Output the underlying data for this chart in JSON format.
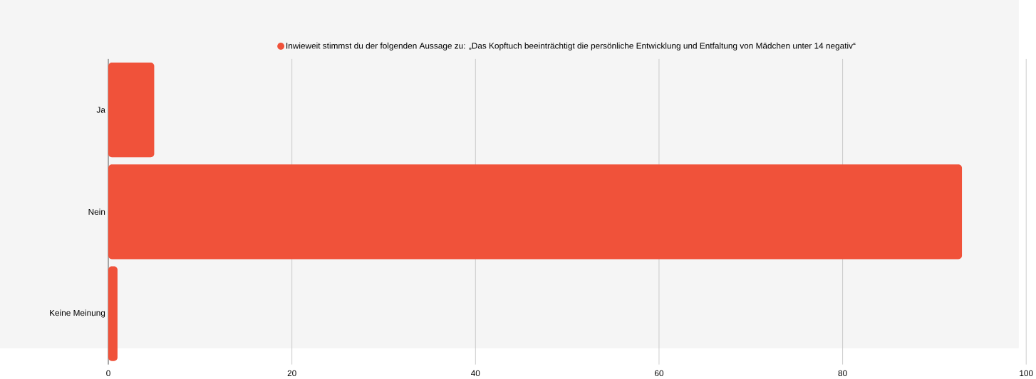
{
  "chart_data": {
    "type": "bar",
    "orientation": "horizontal",
    "categories": [
      "Ja",
      "Nein",
      "Keine Meinung"
    ],
    "series": [
      {
        "name": "Inwieweit stimmst du der folgenden Aussage zu: „Das Kopftuch beeinträchtigt die persönliche Entwicklung und Entfaltung von Mädchen unter 14 negativ“",
        "color": "#f0523a",
        "values": [
          5,
          93,
          1
        ]
      }
    ],
    "xlim": [
      0,
      100
    ],
    "xticks": [
      0,
      20,
      40,
      60,
      80,
      100
    ],
    "grid": "x",
    "legend": "top"
  }
}
